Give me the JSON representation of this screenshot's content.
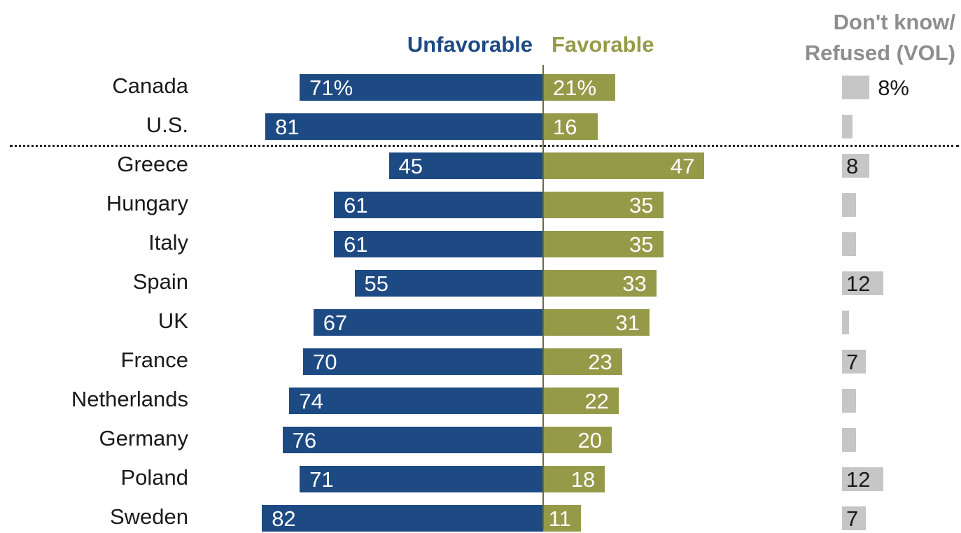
{
  "chart_data": {
    "type": "bar",
    "title": "",
    "series": [
      {
        "name": "Unfavorable",
        "color": "#1e4a84",
        "values": [
          71,
          81,
          45,
          61,
          61,
          55,
          67,
          70,
          74,
          76,
          71,
          82
        ],
        "labels": [
          "71%",
          "81",
          "45",
          "61",
          "61",
          "55",
          "67",
          "70",
          "74",
          "76",
          "71",
          "82"
        ]
      },
      {
        "name": "Favorable",
        "color": "#959a49",
        "values": [
          21,
          16,
          47,
          35,
          35,
          33,
          31,
          23,
          22,
          20,
          18,
          11
        ],
        "labels": [
          "21%",
          "16",
          "47",
          "35",
          "35",
          "33",
          "31",
          "23",
          "22",
          "20",
          "18",
          "11"
        ]
      },
      {
        "name": "Don't know/\nRefused (VOL)",
        "color": "#c6c6c6",
        "values": [
          8,
          3,
          8,
          4,
          4,
          12,
          2,
          7,
          4,
          4,
          12,
          7
        ],
        "labels": [
          "8%",
          "",
          "8",
          "",
          "",
          "12",
          "",
          "7",
          "",
          "",
          "12",
          "7"
        ]
      }
    ],
    "categories": [
      "Canada",
      "U.S.",
      "Greece",
      "Hungary",
      "Italy",
      "Spain",
      "UK",
      "France",
      "Netherlands",
      "Germany",
      "Poland",
      "Sweden"
    ],
    "header_colors": {
      "unfavorable": "#1e4a84",
      "favorable": "#959a49",
      "dont_know": "#8e8e8e"
    },
    "separator_after_category": "U.S."
  }
}
